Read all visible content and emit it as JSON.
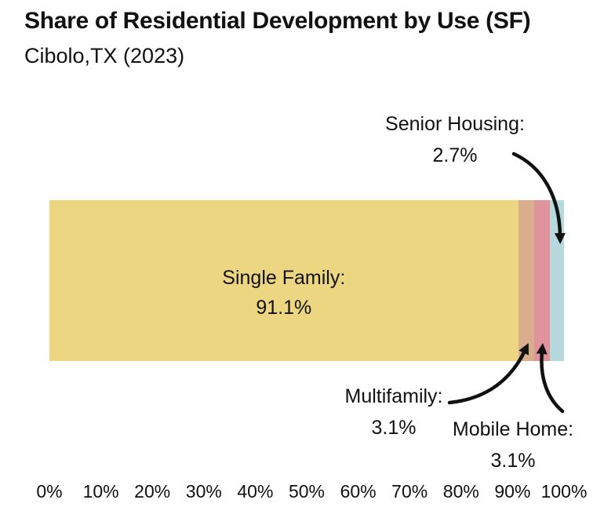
{
  "header": {
    "title": "Share of Residential Development by Use (SF)",
    "subtitle": "Cibolo,TX (2023)"
  },
  "chart_data": {
    "type": "bar",
    "subtype": "stacked-horizontal-100percent",
    "title": "Share of Residential Development by Use (SF)",
    "subtitle": "Cibolo,TX (2023)",
    "categories": [
      "Single Family",
      "Multifamily",
      "Mobile Home",
      "Senior Housing"
    ],
    "values": [
      91.1,
      3.1,
      3.1,
      2.7
    ],
    "unit": "%",
    "colors": [
      "#EDD682",
      "#D9AE8C",
      "#E0939C",
      "#B5D9DC"
    ],
    "x_ticks": [
      "0%",
      "10%",
      "20%",
      "30%",
      "40%",
      "50%",
      "60%",
      "70%",
      "80%",
      "90%",
      "100%"
    ],
    "xlim": [
      0,
      100
    ],
    "grid": false,
    "legend": false
  },
  "callouts": {
    "single_family": {
      "label": "Single Family:",
      "value": "91.1%"
    },
    "multifamily": {
      "label": "Multifamily:",
      "value": "3.1%"
    },
    "mobile_home": {
      "label": "Mobile Home:",
      "value": "3.1%"
    },
    "senior_housing": {
      "label": "Senior Housing:",
      "value": "2.7%"
    }
  },
  "style": {
    "background": "#ffffff",
    "text_color": "#111111",
    "arrow_color": "#111111"
  }
}
